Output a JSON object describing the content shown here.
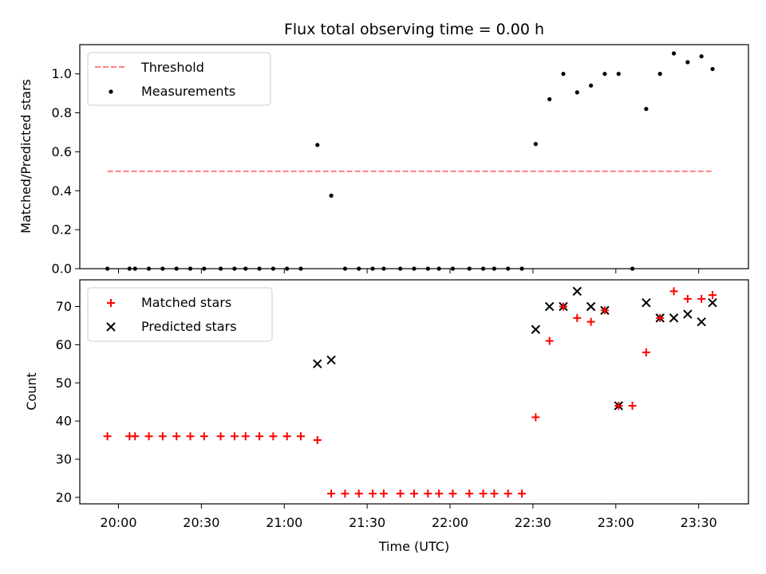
{
  "title": "Flux total observing time = 0.00 h",
  "colors": {
    "threshold": "#ff7f7f",
    "measurement": "#000000",
    "matched": "#ff0000",
    "predicted": "#000000"
  },
  "x_ticks": [
    "20:00",
    "20:30",
    "21:00",
    "21:30",
    "22:00",
    "22:30",
    "23:00",
    "23:30"
  ],
  "chart_data": [
    {
      "type": "scatter",
      "panel": "top",
      "title": "Flux total observing time = 0.00 h",
      "xlabel": "",
      "ylabel": "Matched/Predicted stars",
      "xlim": [
        "19:46",
        "23:48"
      ],
      "ylim": [
        0,
        1.15
      ],
      "y_ticks": [
        "0.0",
        "0.2",
        "0.4",
        "0.6",
        "0.8",
        "1.0"
      ],
      "legend_position": "upper-left",
      "threshold": {
        "name": "Threshold",
        "value": 0.5,
        "x_start": "19:56",
        "x_end": "23:35",
        "style": "dashed"
      },
      "series": [
        {
          "name": "Measurements",
          "marker": "dot",
          "points": [
            [
              "19:56",
              0.0
            ],
            [
              "20:04",
              0.0
            ],
            [
              "20:06",
              0.0
            ],
            [
              "20:11",
              0.0
            ],
            [
              "20:16",
              0.0
            ],
            [
              "20:21",
              0.0
            ],
            [
              "20:26",
              0.0
            ],
            [
              "20:31",
              0.0
            ],
            [
              "20:37",
              0.0
            ],
            [
              "20:42",
              0.0
            ],
            [
              "20:46",
              0.0
            ],
            [
              "20:51",
              0.0
            ],
            [
              "20:56",
              0.0
            ],
            [
              "21:01",
              0.0
            ],
            [
              "21:06",
              0.0
            ],
            [
              "21:12",
              0.635
            ],
            [
              "21:17",
              0.375
            ],
            [
              "21:22",
              0.0
            ],
            [
              "21:27",
              0.0
            ],
            [
              "21:32",
              0.0
            ],
            [
              "21:36",
              0.0
            ],
            [
              "21:42",
              0.0
            ],
            [
              "21:47",
              0.0
            ],
            [
              "21:52",
              0.0
            ],
            [
              "21:56",
              0.0
            ],
            [
              "22:01",
              0.0
            ],
            [
              "22:07",
              0.0
            ],
            [
              "22:12",
              0.0
            ],
            [
              "22:16",
              0.0
            ],
            [
              "22:21",
              0.0
            ],
            [
              "22:26",
              0.0
            ],
            [
              "22:31",
              0.64
            ],
            [
              "22:36",
              0.87
            ],
            [
              "22:41",
              1.0
            ],
            [
              "22:46",
              0.905
            ],
            [
              "22:51",
              0.94
            ],
            [
              "22:56",
              1.0
            ],
            [
              "23:01",
              1.0
            ],
            [
              "23:06",
              0.0
            ],
            [
              "23:11",
              0.82
            ],
            [
              "23:16",
              1.0
            ],
            [
              "23:21",
              1.105
            ],
            [
              "23:26",
              1.06
            ],
            [
              "23:31",
              1.09
            ],
            [
              "23:35",
              1.025
            ]
          ]
        }
      ]
    },
    {
      "type": "scatter",
      "panel": "bottom",
      "xlabel": "Time (UTC)",
      "ylabel": "Count",
      "xlim": [
        "19:46",
        "23:48"
      ],
      "ylim": [
        18.3,
        77
      ],
      "y_ticks": [
        "20",
        "30",
        "40",
        "50",
        "60",
        "70"
      ],
      "legend_position": "upper-left",
      "series": [
        {
          "name": "Matched stars",
          "marker": "plus",
          "points": [
            [
              "19:56",
              36
            ],
            [
              "20:04",
              36
            ],
            [
              "20:06",
              36
            ],
            [
              "20:11",
              36
            ],
            [
              "20:16",
              36
            ],
            [
              "20:21",
              36
            ],
            [
              "20:26",
              36
            ],
            [
              "20:31",
              36
            ],
            [
              "20:37",
              36
            ],
            [
              "20:42",
              36
            ],
            [
              "20:46",
              36
            ],
            [
              "20:51",
              36
            ],
            [
              "20:56",
              36
            ],
            [
              "21:01",
              36
            ],
            [
              "21:06",
              36
            ],
            [
              "21:12",
              35
            ],
            [
              "21:17",
              21
            ],
            [
              "21:22",
              21
            ],
            [
              "21:27",
              21
            ],
            [
              "21:32",
              21
            ],
            [
              "21:36",
              21
            ],
            [
              "21:42",
              21
            ],
            [
              "21:47",
              21
            ],
            [
              "21:52",
              21
            ],
            [
              "21:56",
              21
            ],
            [
              "22:01",
              21
            ],
            [
              "22:07",
              21
            ],
            [
              "22:12",
              21
            ],
            [
              "22:16",
              21
            ],
            [
              "22:21",
              21
            ],
            [
              "22:26",
              21
            ],
            [
              "22:31",
              41
            ],
            [
              "22:36",
              61
            ],
            [
              "22:41",
              70
            ],
            [
              "22:46",
              67
            ],
            [
              "22:51",
              66
            ],
            [
              "22:56",
              69
            ],
            [
              "23:01",
              44
            ],
            [
              "23:06",
              44
            ],
            [
              "23:11",
              58
            ],
            [
              "23:16",
              67
            ],
            [
              "23:21",
              74
            ],
            [
              "23:26",
              72
            ],
            [
              "23:31",
              72
            ],
            [
              "23:35",
              73
            ]
          ]
        },
        {
          "name": "Predicted stars",
          "marker": "x",
          "points": [
            [
              "21:12",
              55
            ],
            [
              "21:17",
              56
            ],
            [
              "22:31",
              64
            ],
            [
              "22:36",
              70
            ],
            [
              "22:41",
              70
            ],
            [
              "22:46",
              74
            ],
            [
              "22:51",
              70
            ],
            [
              "22:56",
              69
            ],
            [
              "23:01",
              44
            ],
            [
              "23:11",
              71
            ],
            [
              "23:16",
              67
            ],
            [
              "23:21",
              67
            ],
            [
              "23:26",
              68
            ],
            [
              "23:31",
              66
            ],
            [
              "23:35",
              71
            ]
          ]
        }
      ]
    }
  ]
}
